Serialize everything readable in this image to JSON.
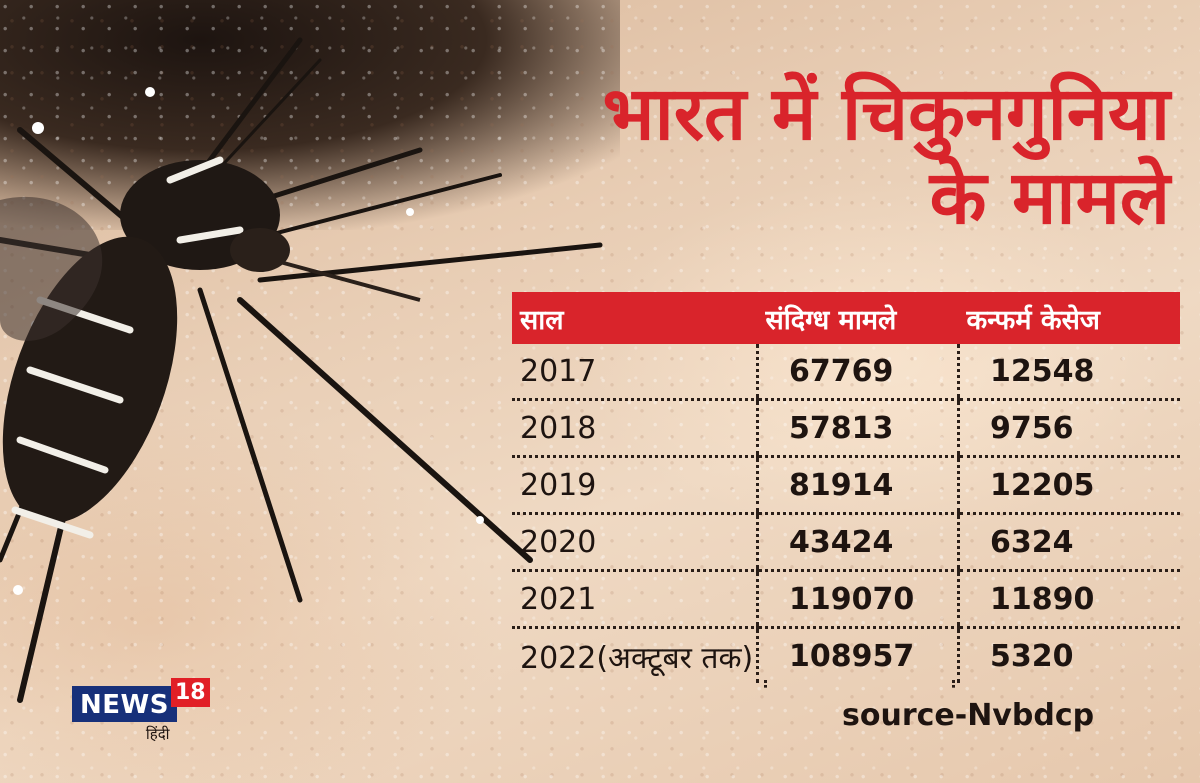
{
  "title": {
    "line1": "भारत में चिकुनगुनिया",
    "line2": "के मामले"
  },
  "chart_data": {
    "type": "table",
    "columns": [
      "साल",
      "संदिग्ध मामले",
      "कन्फर्म केसेज"
    ],
    "rows": [
      [
        "2017",
        "67769",
        "12548"
      ],
      [
        "2018",
        "57813",
        "9756"
      ],
      [
        "2019",
        "81914",
        "12205"
      ],
      [
        "2020",
        "43424",
        "6324"
      ],
      [
        "2021",
        "119070",
        "11890"
      ],
      [
        "2022(अक्टूबर तक)",
        "108957",
        "5320"
      ]
    ]
  },
  "source": "source-Nvbdcp",
  "logo": {
    "brand": "NEWS",
    "number": "18",
    "language": "हिंदी"
  },
  "colors": {
    "accent": "#d9242b",
    "logo_blue": "#17307a",
    "text": "#1e1410"
  },
  "background": "mosquito-on-skin-photo"
}
